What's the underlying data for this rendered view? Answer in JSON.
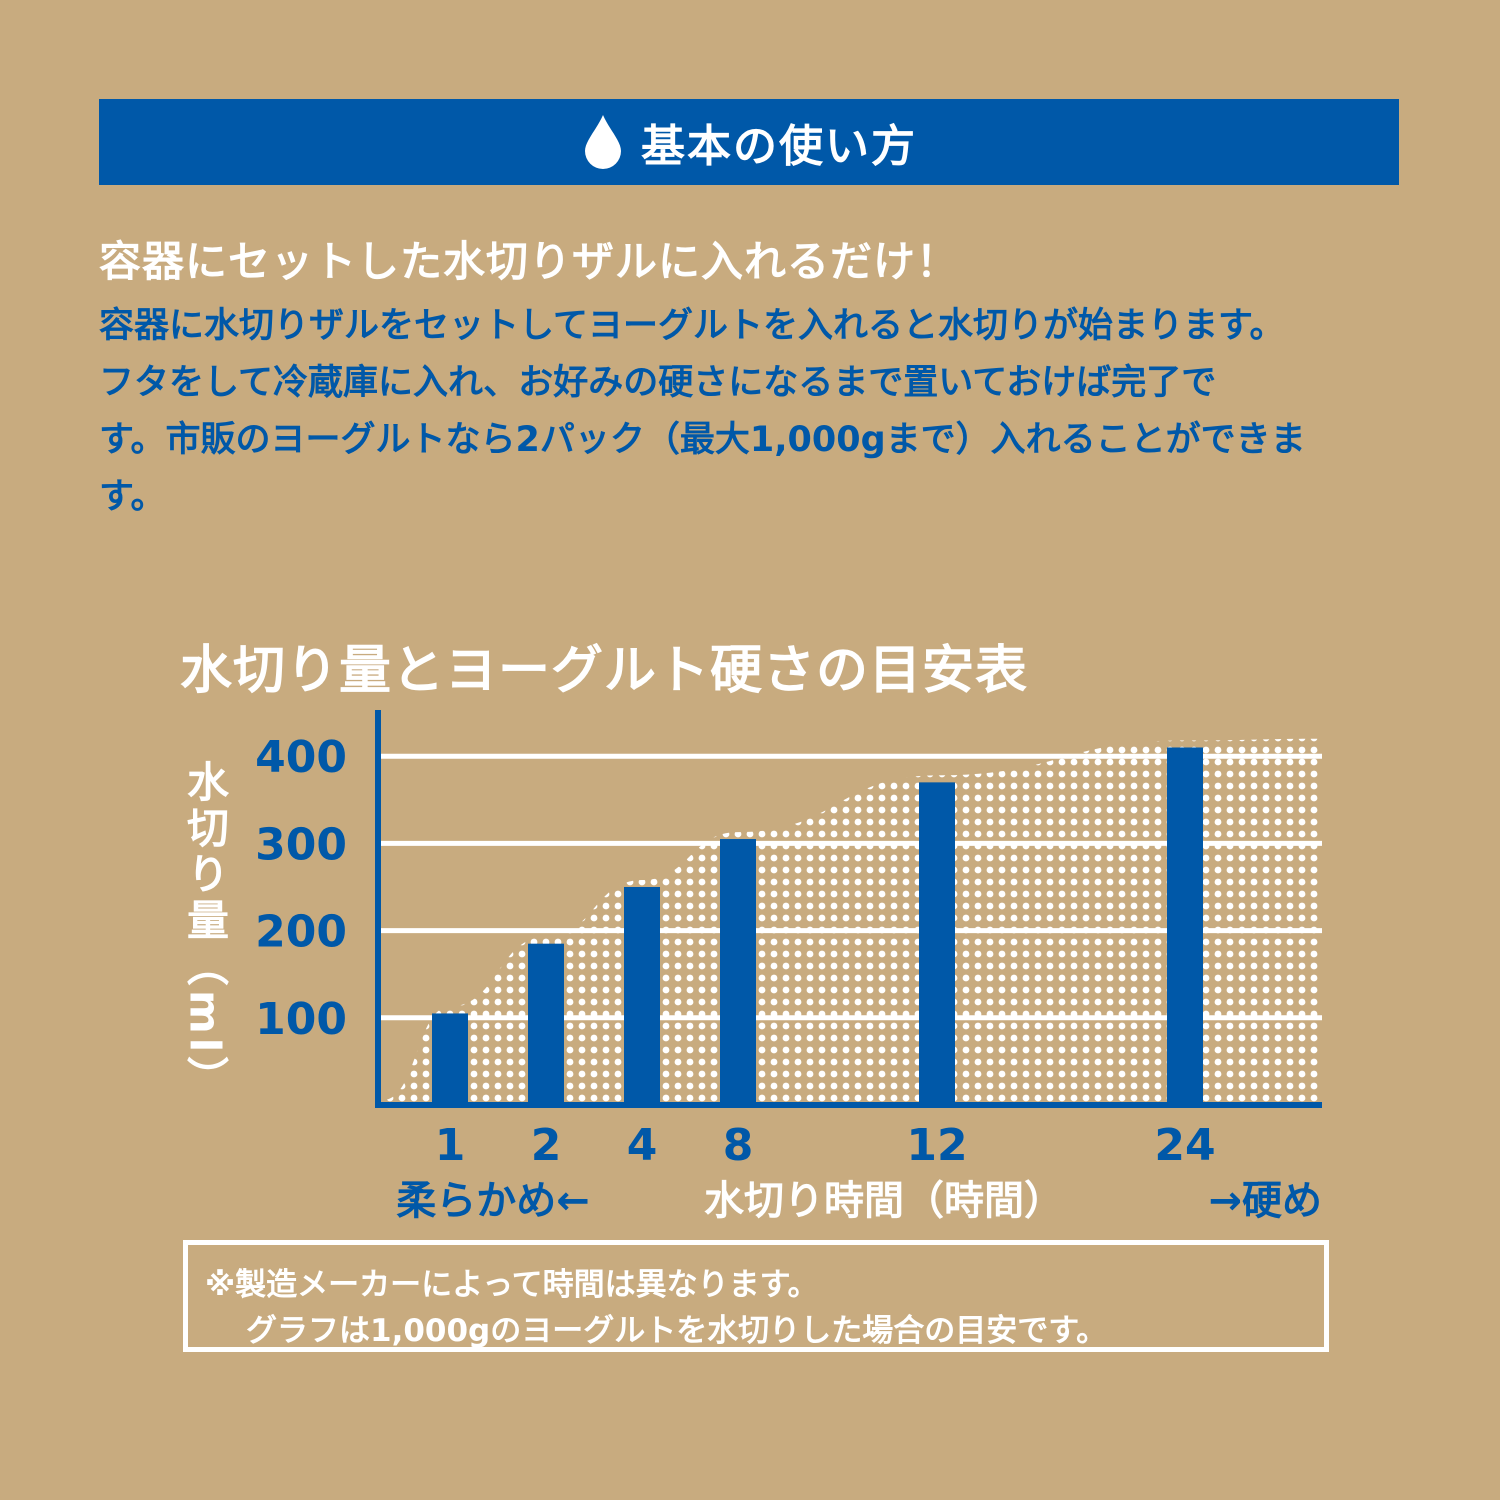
{
  "header": {
    "icon": "water-drop-icon",
    "title": "基本の使い方"
  },
  "intro": {
    "heading": "容器にセットした水切りザルに入れるだけ！",
    "body_lines": [
      "容器に水切りザルをセットしてヨーグルトを入れると水切りが始まります。",
      "フタをして冷蔵庫に入れ、お好みの硬さになるまで置いておけば完了で",
      "す。市販のヨーグルトなら2パック（最大1,000gまで）入れることができま",
      "す。"
    ]
  },
  "chart_data": {
    "type": "bar",
    "title": "水切り量とヨーグルト硬さの目安表",
    "ylabel": "水切り量（ml）",
    "xlabel": "水切り時間（時間）",
    "x_left_note": "柔らかめ←",
    "x_right_note": "→硬め",
    "x": [
      1,
      2,
      4,
      8,
      12,
      24
    ],
    "categories": [
      "1",
      "2",
      "4",
      "8",
      "12",
      "24"
    ],
    "values": [
      105,
      185,
      250,
      305,
      370,
      410
    ],
    "yticks": [
      "100",
      "200",
      "300",
      "400"
    ],
    "ylim": [
      0,
      450
    ],
    "grid": true,
    "colors": {
      "bar": "#0058a8",
      "tick_text": "#0058a8",
      "axis": "#0058a8",
      "grid": "#ffffff",
      "area_fill": "#ffffff"
    }
  },
  "footnote": {
    "line1": "※製造メーカーによって時間は異なります。",
    "line2": "グラフは1,000gのヨーグルトを水切りした場合の目安です。"
  }
}
